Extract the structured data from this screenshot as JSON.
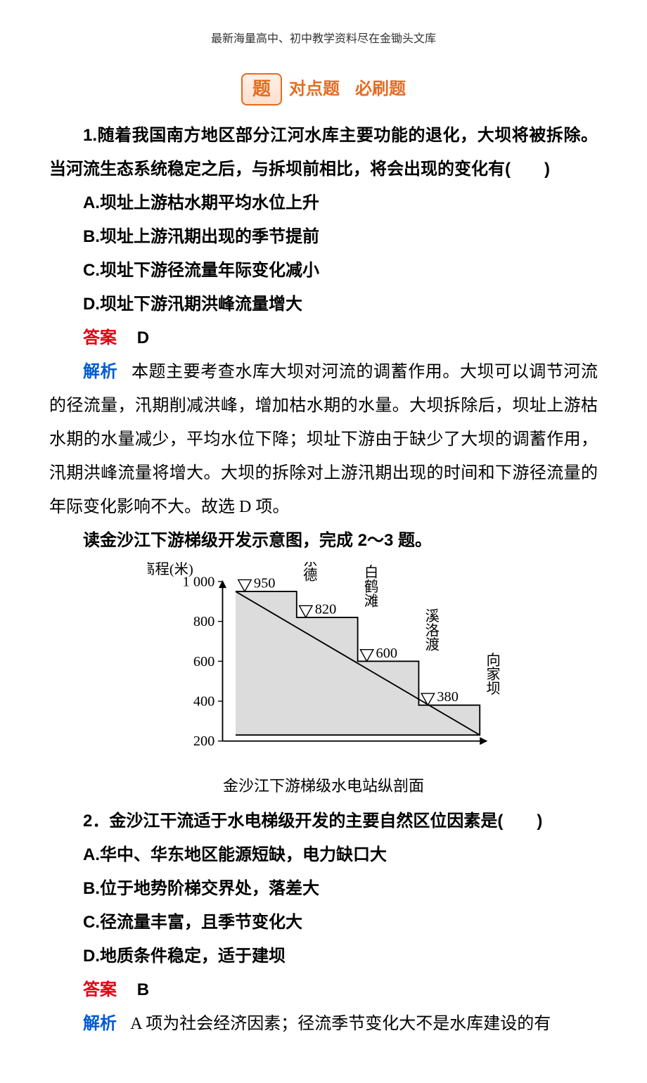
{
  "header": "最新海量高中、初中教学资料尽在金锄头文库",
  "badge": {
    "icon": "题",
    "text1": "对点题",
    "text2": "必刷题"
  },
  "q1": {
    "stem": "1.随着我国南方地区部分江河水库主要功能的退化，大坝将被拆除。当河流生态系统稳定之后，与拆坝前相比，将会出现的变化有(　　)",
    "A": "A.坝址上游枯水期平均水位上升",
    "B": "B.坝址上游汛期出现的季节提前",
    "C": "C.坝址下游径流量年际变化减小",
    "D": "D.坝址下游汛期洪峰流量增大",
    "answer_label": "答案",
    "answer_value": "D",
    "explain_label": "解析",
    "explain_text": "本题主要考查水库大坝对河流的调蓄作用。大坝可以调节河流的径流量，汛期削减洪峰，增加枯水期的水量。大坝拆除后，坝址上游枯水期的水量减少，平均水位下降；坝址下游由于缺少了大坝的调蓄作用，汛期洪峰流量将增大。大坝的拆除对上游汛期出现的时间和下游径流量的年际变化影响不大。故选 D 项。"
  },
  "intro2": "读金沙江下游梯级开发示意图，完成 2～3 题。",
  "chart": {
    "y_title": "高程(米)",
    "y_ticks": [
      1000,
      800,
      600,
      400,
      200
    ],
    "y_tick_labels": [
      "1 000",
      "800",
      "600",
      "400",
      "200"
    ],
    "stations": [
      {
        "name": "乌东德",
        "value": 950,
        "value_label": "950"
      },
      {
        "name": "白鹤滩",
        "value": 820,
        "value_label": "820"
      },
      {
        "name": "溪洛渡",
        "value": 600,
        "value_label": "600"
      },
      {
        "name": "向家坝",
        "value": 380,
        "value_label": "380"
      }
    ],
    "base_value": 230,
    "grid_color": "#000000",
    "fill_color": "#dcdcdc",
    "caption": "金沙江下游梯级水电站纵剖面"
  },
  "q2": {
    "stem": "2．金沙江干流适于水电梯级开发的主要自然区位因素是(　　)",
    "A": "A.华中、华东地区能源短缺，电力缺口大",
    "B": "B.位于地势阶梯交界处，落差大",
    "C": "C.径流量丰富，且季节变化大",
    "D": "D.地质条件稳定，适于建坝",
    "answer_label": "答案",
    "answer_value": "B",
    "explain_label": "解析",
    "explain_text": "A 项为社会经济因素；径流季节变化大不是水库建设的有"
  }
}
